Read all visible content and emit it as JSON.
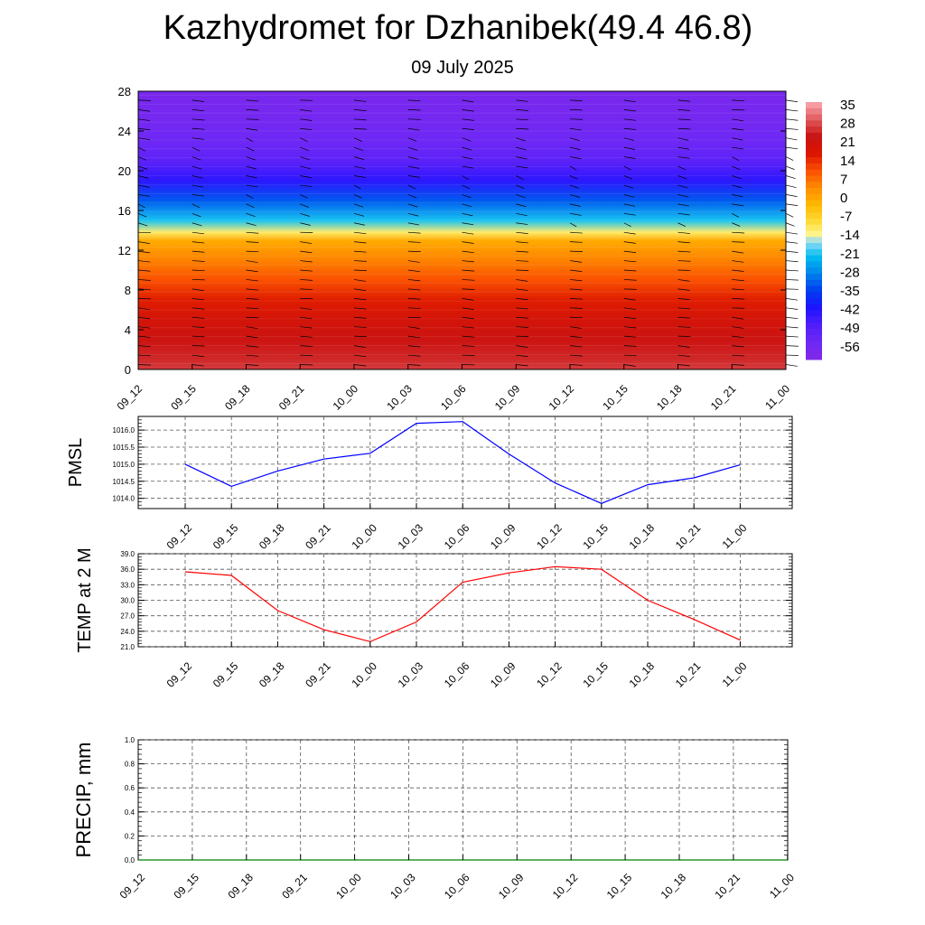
{
  "header": {
    "title": "Kazhydromet for Dzhanibek(49.4 46.8)",
    "subtitle": "09 July 2025"
  },
  "time_labels": [
    "09_12",
    "09_15",
    "09_18",
    "09_21",
    "10_00",
    "10_03",
    "10_06",
    "10_09",
    "10_12",
    "10_15",
    "10_18",
    "10_21",
    "11_00"
  ],
  "chart_data": [
    {
      "type": "heatmap",
      "x": [
        "09_12",
        "09_15",
        "09_18",
        "09_21",
        "10_00",
        "10_03",
        "10_06",
        "10_09",
        "10_12",
        "10_15",
        "10_18",
        "10_21",
        "11_00"
      ],
      "ylim": [
        0,
        28
      ],
      "yticks": [
        0,
        4,
        8,
        12,
        16,
        20,
        24,
        28
      ],
      "colorbar": {
        "labels": [
          "35",
          "28",
          "21",
          "14",
          "7",
          "0",
          "-7",
          "-14",
          "-21",
          "-28",
          "-35",
          "-42",
          "-49",
          "-56"
        ],
        "range": [
          -63,
          42
        ]
      },
      "temperature_profile": [
        {
          "height": 0,
          "temp": 32
        },
        {
          "height": 1,
          "temp": 30
        },
        {
          "height": 3,
          "temp": 27
        },
        {
          "height": 5,
          "temp": 24
        },
        {
          "height": 7,
          "temp": 20
        },
        {
          "height": 9,
          "temp": 14
        },
        {
          "height": 11,
          "temp": 8
        },
        {
          "height": 13,
          "temp": 2
        },
        {
          "height": 13.8,
          "temp": -10
        },
        {
          "height": 15,
          "temp": -20
        },
        {
          "height": 17,
          "temp": -32
        },
        {
          "height": 19,
          "temp": -44
        },
        {
          "height": 21,
          "temp": -52
        },
        {
          "height": 23,
          "temp": -56
        },
        {
          "height": 25,
          "temp": -58
        },
        {
          "height": 28,
          "temp": -60
        }
      ],
      "wind_barbs": true
    },
    {
      "type": "line",
      "ylabel": "PMSL",
      "x": [
        "09_12",
        "09_15",
        "09_18",
        "09_21",
        "10_00",
        "10_03",
        "10_06",
        "10_09",
        "10_12",
        "10_15",
        "10_18",
        "10_21",
        "11_00"
      ],
      "series": [
        {
          "values": [
            1015.0,
            1014.35,
            1014.8,
            1015.15,
            1015.32,
            1016.2,
            1016.25,
            1015.3,
            1014.45,
            1013.85,
            1014.4,
            1014.6,
            1014.98
          ]
        }
      ],
      "ylim": [
        1013.7,
        1016.4
      ],
      "yticks": [
        1014.0,
        1014.5,
        1015.0,
        1015.5,
        1016.0
      ],
      "color": "#0000ff"
    },
    {
      "type": "line",
      "ylabel": "TEMP at 2 M",
      "x": [
        "09_12",
        "09_15",
        "09_18",
        "09_21",
        "10_00",
        "10_03",
        "10_06",
        "10_09",
        "10_12",
        "10_15",
        "10_18",
        "10_21",
        "11_00"
      ],
      "series": [
        {
          "values": [
            35.5,
            34.8,
            28.0,
            24.3,
            22.0,
            25.8,
            33.5,
            35.3,
            36.5,
            36.0,
            30.0,
            26.3,
            22.3
          ]
        }
      ],
      "ylim": [
        21.0,
        39.0
      ],
      "yticks": [
        21.0,
        24.0,
        27.0,
        30.0,
        33.0,
        36.0,
        39.0
      ],
      "color": "#ff0000"
    },
    {
      "type": "line",
      "ylabel": "PRECIP, mm",
      "x": [
        "09_12",
        "09_15",
        "09_18",
        "09_21",
        "10_00",
        "10_03",
        "10_06",
        "10_09",
        "10_12",
        "10_15",
        "10_18",
        "10_21",
        "11_00"
      ],
      "series": [
        {
          "values": [
            0,
            0,
            0,
            0,
            0,
            0,
            0,
            0,
            0,
            0,
            0,
            0,
            0
          ]
        }
      ],
      "ylim": [
        0,
        1.0
      ],
      "yticks": [
        0.0,
        0.2,
        0.4,
        0.6,
        0.8,
        1.0
      ],
      "color": "#008000"
    }
  ]
}
